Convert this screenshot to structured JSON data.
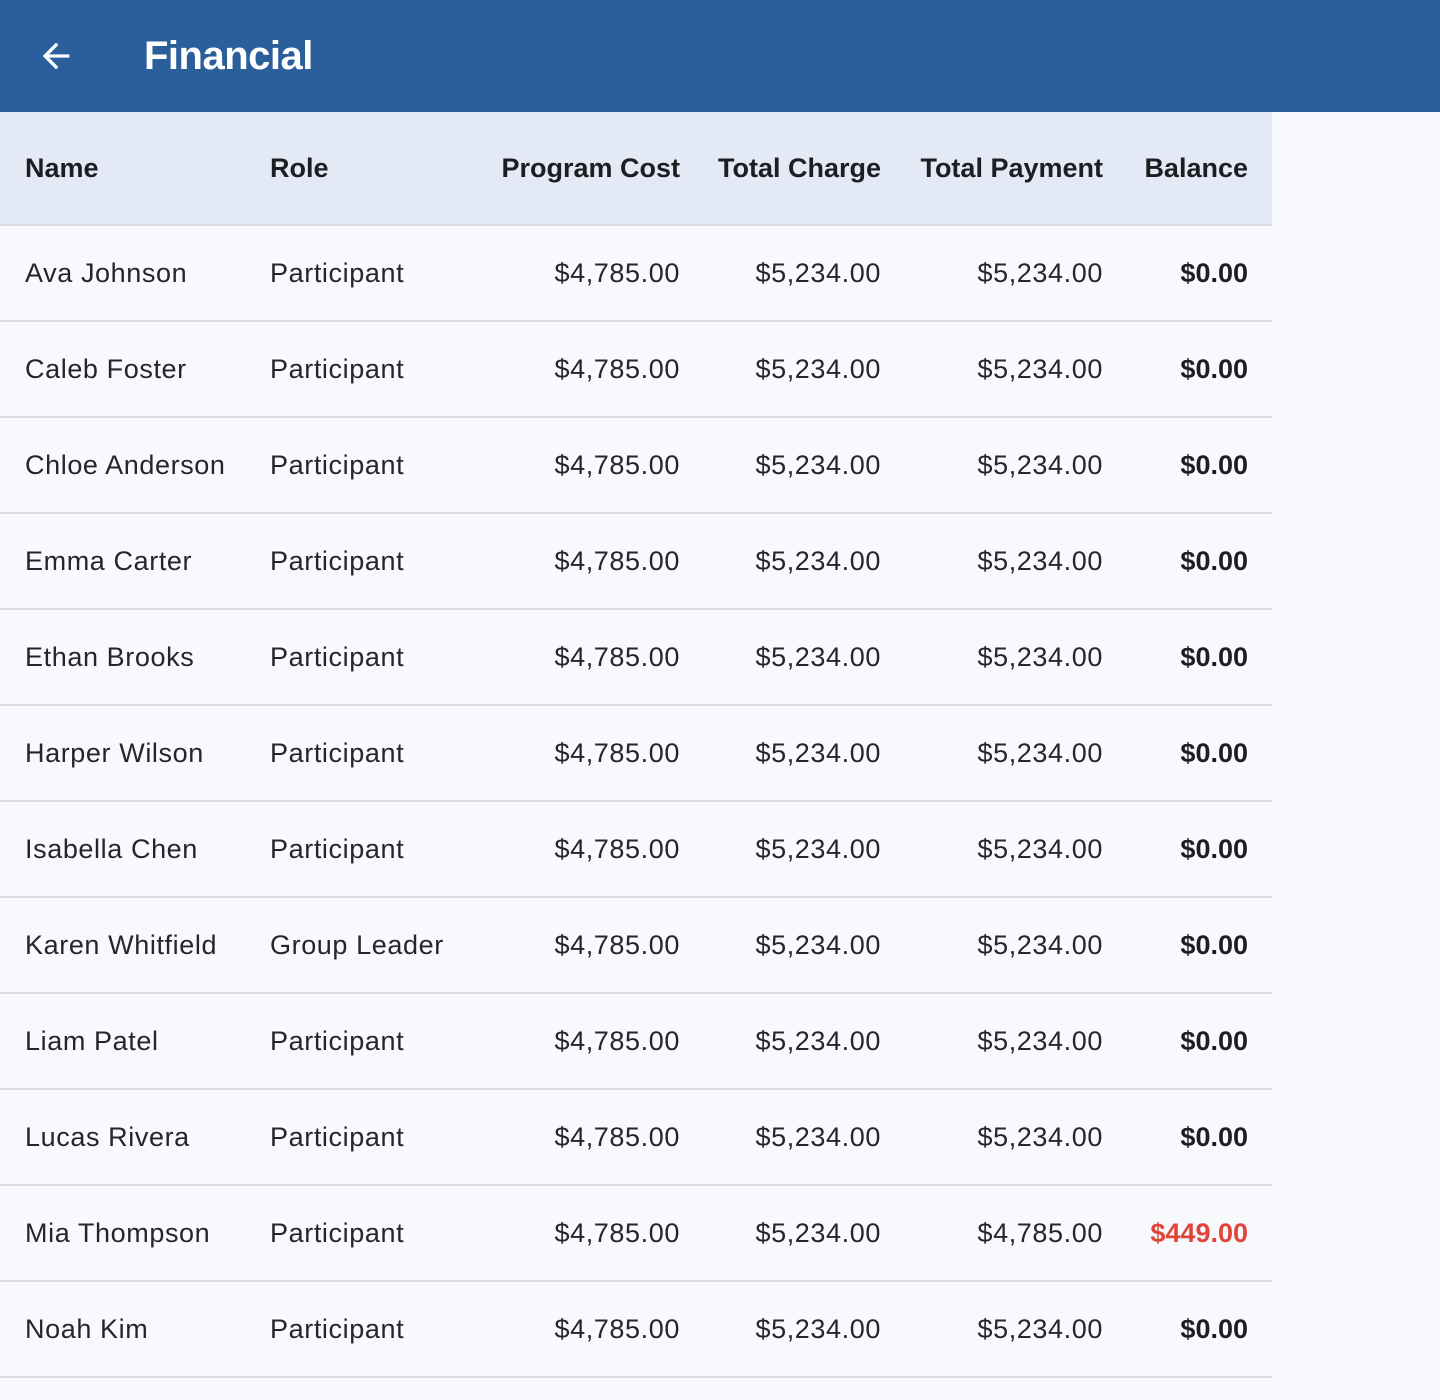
{
  "header": {
    "title": "Financial",
    "back_icon": "arrow-left-icon",
    "background": "#2b5f9b"
  },
  "table": {
    "columns": [
      "Name",
      "Role",
      "Program Cost",
      "Total Charge",
      "Total Payment",
      "Balance"
    ],
    "rows": [
      {
        "name": "Ava Johnson",
        "role": "Participant",
        "program_cost": "$4,785.00",
        "total_charge": "$5,234.00",
        "total_payment": "$5,234.00",
        "balance": "$0.00",
        "owed": false
      },
      {
        "name": "Caleb Foster",
        "role": "Participant",
        "program_cost": "$4,785.00",
        "total_charge": "$5,234.00",
        "total_payment": "$5,234.00",
        "balance": "$0.00",
        "owed": false
      },
      {
        "name": "Chloe Anderson",
        "role": "Participant",
        "program_cost": "$4,785.00",
        "total_charge": "$5,234.00",
        "total_payment": "$5,234.00",
        "balance": "$0.00",
        "owed": false
      },
      {
        "name": "Emma Carter",
        "role": "Participant",
        "program_cost": "$4,785.00",
        "total_charge": "$5,234.00",
        "total_payment": "$5,234.00",
        "balance": "$0.00",
        "owed": false
      },
      {
        "name": "Ethan Brooks",
        "role": "Participant",
        "program_cost": "$4,785.00",
        "total_charge": "$5,234.00",
        "total_payment": "$5,234.00",
        "balance": "$0.00",
        "owed": false
      },
      {
        "name": "Harper Wilson",
        "role": "Participant",
        "program_cost": "$4,785.00",
        "total_charge": "$5,234.00",
        "total_payment": "$5,234.00",
        "balance": "$0.00",
        "owed": false
      },
      {
        "name": "Isabella Chen",
        "role": "Participant",
        "program_cost": "$4,785.00",
        "total_charge": "$5,234.00",
        "total_payment": "$5,234.00",
        "balance": "$0.00",
        "owed": false
      },
      {
        "name": "Karen Whitfield",
        "role": "Group Leader",
        "program_cost": "$4,785.00",
        "total_charge": "$5,234.00",
        "total_payment": "$5,234.00",
        "balance": "$0.00",
        "owed": false
      },
      {
        "name": "Liam Patel",
        "role": "Participant",
        "program_cost": "$4,785.00",
        "total_charge": "$5,234.00",
        "total_payment": "$5,234.00",
        "balance": "$0.00",
        "owed": false
      },
      {
        "name": "Lucas Rivera",
        "role": "Participant",
        "program_cost": "$4,785.00",
        "total_charge": "$5,234.00",
        "total_payment": "$5,234.00",
        "balance": "$0.00",
        "owed": false
      },
      {
        "name": "Mia Thompson",
        "role": "Participant",
        "program_cost": "$4,785.00",
        "total_charge": "$5,234.00",
        "total_payment": "$4,785.00",
        "balance": "$449.00",
        "owed": true
      },
      {
        "name": "Noah Kim",
        "role": "Participant",
        "program_cost": "$4,785.00",
        "total_charge": "$5,234.00",
        "total_payment": "$5,234.00",
        "balance": "$0.00",
        "owed": false
      }
    ]
  },
  "colors": {
    "header_row": "#e3eaf5",
    "owed_balance": "#e0453a"
  }
}
